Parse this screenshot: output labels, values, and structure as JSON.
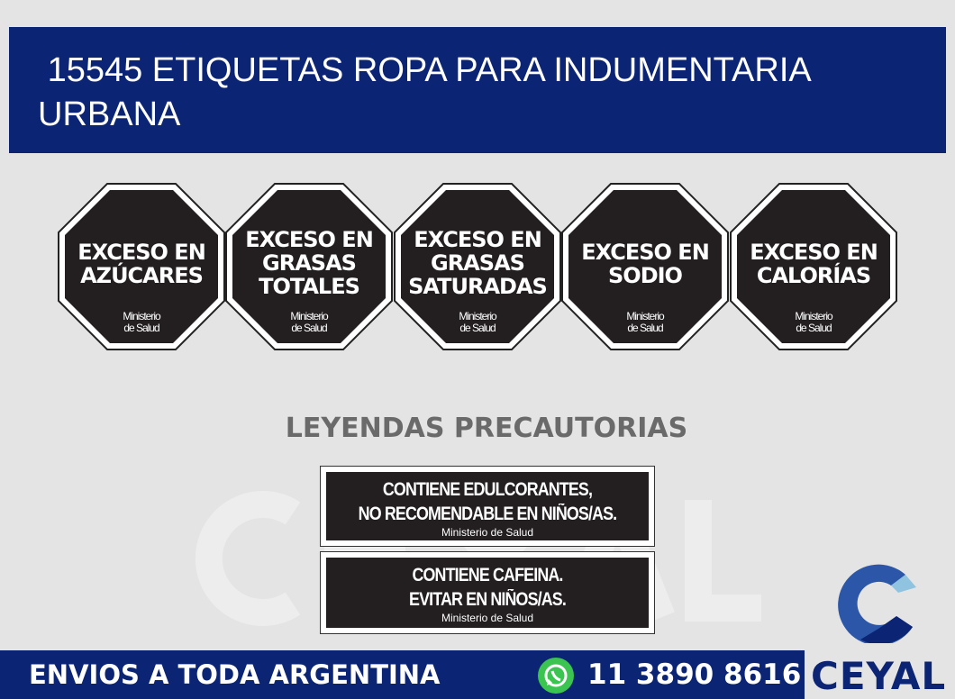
{
  "header": {
    "title": " 15545 ETIQUETAS ROPA PARA INDUMENTARIA\nURBANA"
  },
  "octagons": [
    {
      "lines": [
        "EXCESO EN",
        "AZÚCARES"
      ],
      "ministry": [
        "Ministerio",
        "de Salud"
      ]
    },
    {
      "lines": [
        "EXCESO EN",
        "GRASAS",
        "TOTALES"
      ],
      "ministry": [
        "Ministerio",
        "de Salud"
      ]
    },
    {
      "lines": [
        "EXCESO EN",
        "GRASAS",
        "SATURADAS"
      ],
      "ministry": [
        "Ministerio",
        "de Salud"
      ]
    },
    {
      "lines": [
        "EXCESO EN",
        "SODIO"
      ],
      "ministry": [
        "Ministerio",
        "de Salud"
      ]
    },
    {
      "lines": [
        "EXCESO EN",
        "CALORÍAS"
      ],
      "ministry": [
        "Ministerio",
        "de Salud"
      ]
    }
  ],
  "legends_title": "LEYENDAS PRECAUTORIAS",
  "legends": [
    {
      "lines": [
        "CONTIENE EDULCORANTES,",
        "NO RECOMENDABLE EN NIÑOS/AS."
      ],
      "ministry": "Ministerio de Salud"
    },
    {
      "lines": [
        "CONTIENE CAFEINA.",
        "EVITAR EN NIÑOS/AS."
      ],
      "ministry": "Ministerio de Salud"
    }
  ],
  "footer": {
    "shipping": "ENVIOS A TODA ARGENTINA",
    "phone": "11 3890 8616",
    "whatsapp_icon": "whatsapp-icon"
  },
  "brand": {
    "name": "CEYAL",
    "watermark": "CEYAL",
    "colors": {
      "navy": "#0b2473",
      "blue": "#2c56a8",
      "light": "#8fc3e0"
    }
  }
}
